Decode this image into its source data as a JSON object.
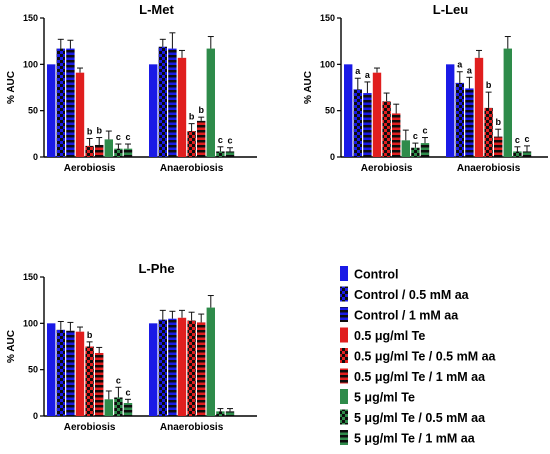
{
  "charts": [
    {
      "id": "met",
      "type": "bar",
      "title": "L-Met",
      "ylabel": "% AUC",
      "ylim": [
        0,
        150
      ],
      "yticks": [
        0,
        50,
        100,
        150
      ],
      "groups": [
        "Aerobiosis",
        "Anaerobiosis"
      ],
      "values": [
        [
          100,
          117,
          117,
          91,
          12,
          13,
          19,
          9,
          9
        ],
        [
          100,
          119,
          117,
          107,
          28,
          39,
          117,
          6,
          6
        ]
      ],
      "errors": [
        [
          0,
          10,
          9,
          5,
          8,
          8,
          9,
          5,
          5
        ],
        [
          0,
          8,
          17,
          8,
          8,
          4,
          13,
          5,
          4
        ]
      ],
      "letters": [
        [
          "",
          "",
          "",
          "",
          "b",
          "b",
          "",
          "c",
          "c"
        ],
        [
          "",
          "",
          "",
          "",
          "b",
          "b",
          "",
          "c",
          "c"
        ]
      ]
    },
    {
      "id": "leu",
      "type": "bar",
      "title": "L-Leu",
      "ylabel": "% AUC",
      "ylim": [
        0,
        150
      ],
      "yticks": [
        0,
        50,
        100,
        150
      ],
      "groups": [
        "Aerobiosis",
        "Anaerobiosis"
      ],
      "values": [
        [
          100,
          73,
          69,
          91,
          60,
          47,
          18,
          10,
          15
        ],
        [
          100,
          80,
          74,
          107,
          53,
          22,
          117,
          6,
          6
        ]
      ],
      "errors": [
        [
          0,
          12,
          12,
          5,
          9,
          10,
          11,
          5,
          6
        ],
        [
          0,
          12,
          12,
          8,
          17,
          8,
          13,
          5,
          6
        ]
      ],
      "letters": [
        [
          "",
          "a",
          "a",
          "",
          "",
          "",
          "",
          "c",
          "c"
        ],
        [
          "",
          "a",
          "a",
          "",
          "b",
          "b",
          "",
          "c",
          "c"
        ]
      ]
    },
    {
      "id": "phe",
      "type": "bar",
      "title": "L-Phe",
      "ylabel": "% AUC",
      "ylim": [
        0,
        150
      ],
      "yticks": [
        0,
        50,
        100,
        150
      ],
      "groups": [
        "Aerobiosis",
        "Anaerobiosis"
      ],
      "values": [
        [
          100,
          93,
          92,
          91,
          75,
          68,
          18,
          20,
          14
        ],
        [
          100,
          104,
          105,
          106,
          103,
          101,
          117,
          5,
          5
        ]
      ],
      "errors": [
        [
          0,
          9,
          9,
          5,
          5,
          6,
          9,
          11,
          4
        ],
        [
          0,
          10,
          8,
          8,
          9,
          9,
          13,
          3,
          3
        ]
      ],
      "letters": [
        [
          "",
          "",
          "",
          "",
          "b",
          "",
          "",
          "c",
          "c"
        ],
        [
          "",
          "",
          "",
          "",
          "",
          "",
          "",
          "",
          ""
        ]
      ]
    }
  ],
  "series": [
    {
      "name": "Control",
      "color": "#1a1ae6",
      "pattern": "solid"
    },
    {
      "name": "Control / 0.5 mM aa",
      "color": "#1a1ae6",
      "pattern": "checker"
    },
    {
      "name": "Control / 1 mM aa",
      "color": "#1a1ae6",
      "pattern": "stripes"
    },
    {
      "name": "0.5 μg/ml Te",
      "color": "#e01e1e",
      "pattern": "solid"
    },
    {
      "name": "0.5 μg/ml Te / 0.5 mM aa",
      "color": "#e01e1e",
      "pattern": "checker"
    },
    {
      "name": "0.5 μg/ml Te / 1 mM aa",
      "color": "#e01e1e",
      "pattern": "stripes"
    },
    {
      "name": "5 μg/ml Te",
      "color": "#2e8b4a",
      "pattern": "solid"
    },
    {
      "name": "5 μg/ml Te / 0.5 mM aa",
      "color": "#2e8b4a",
      "pattern": "checker"
    },
    {
      "name": "5 μg/ml Te / 1 mM aa",
      "color": "#2e8b4a",
      "pattern": "stripes"
    }
  ]
}
